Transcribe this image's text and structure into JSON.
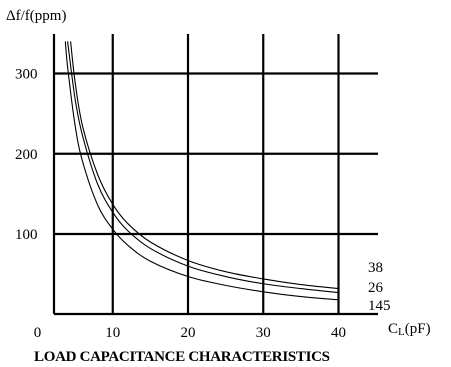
{
  "chart_data": {
    "type": "line",
    "title": "LOAD CAPACITANCE CHARACTERISTICS",
    "ylabel": "Δf/f(ppm)",
    "xlabel": "CL(pF)",
    "xlabel_parts": {
      "main": "C",
      "sub": "L",
      "unit": "(pF)"
    },
    "xlim": [
      0,
      42
    ],
    "ylim": [
      -10,
      350
    ],
    "x_ticks": [
      0,
      10,
      20,
      30,
      40
    ],
    "y_ticks": [
      100,
      200,
      300
    ],
    "x_tick_labels": [
      "0",
      "10",
      "20",
      "30",
      "40"
    ],
    "y_tick_labels": [
      "100",
      "200",
      "300"
    ],
    "grid": true,
    "series": [
      {
        "name": "38",
        "x": [
          4,
          5,
          6,
          8,
          10,
          12,
          15,
          20,
          25,
          30,
          35,
          40
        ],
        "y": [
          340,
          268,
          222,
          162,
          127,
          104,
          82,
          60,
          47,
          38,
          32,
          27
        ]
      },
      {
        "name": "26",
        "x": [
          4.4,
          5,
          6,
          8,
          10,
          12,
          15,
          20,
          25,
          30,
          35,
          40
        ],
        "y": [
          340,
          289,
          234,
          174,
          137,
          113,
          90,
          67,
          53,
          44,
          37,
          32
        ]
      },
      {
        "name": "145",
        "x": [
          3.7,
          4,
          5,
          6,
          8,
          10,
          12,
          15,
          20,
          25,
          30,
          35,
          40
        ],
        "y": [
          340,
          308,
          235,
          190,
          136,
          106,
          86,
          66,
          47,
          36,
          28,
          22,
          18
        ]
      }
    ],
    "series_label_order": [
      "38",
      "26",
      "145"
    ],
    "colors": {
      "line": "#000000",
      "grid": "#000000",
      "background": "#ffffff"
    }
  }
}
